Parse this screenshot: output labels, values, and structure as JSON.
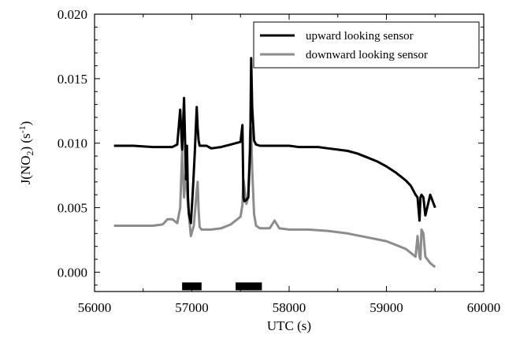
{
  "chart_data": {
    "type": "line",
    "title": "",
    "xlabel": "UTC (s)",
    "ylabel": {
      "base": "J(NO",
      "sub": "2",
      "mid": ") (s",
      "sup": "-1",
      "end": ")"
    },
    "xlim": [
      56000,
      60000
    ],
    "ylim": [
      -0.0015,
      0.02
    ],
    "xticks": [
      56000,
      57000,
      58000,
      59000,
      60000
    ],
    "xtick_labels": [
      "56000",
      "57000",
      "58000",
      "59000",
      "60000"
    ],
    "yticks": [
      0.0,
      0.005,
      0.01,
      0.015,
      0.02
    ],
    "ytick_labels": [
      "0.000",
      "0.005",
      "0.010",
      "0.015",
      "0.020"
    ],
    "legend": {
      "position": "top-right"
    },
    "grid": false,
    "series": [
      {
        "name": "upward looking sensor",
        "color": "#000000",
        "x": [
          56200,
          56400,
          56600,
          56800,
          56850,
          56880,
          56900,
          56920,
          56940,
          56950,
          56960,
          56970,
          56990,
          57010,
          57030,
          57050,
          57060,
          57070,
          57080,
          57100,
          57150,
          57200,
          57300,
          57400,
          57500,
          57520,
          57530,
          57540,
          57560,
          57580,
          57600,
          57610,
          57620,
          57640,
          57660,
          57700,
          57800,
          57900,
          58000,
          58100,
          58200,
          58300,
          58400,
          58500,
          58600,
          58700,
          58800,
          58900,
          59000,
          59100,
          59200,
          59250,
          59300,
          59320,
          59340,
          59350,
          59360,
          59380,
          59400,
          59450,
          59500
        ],
        "y": [
          0.0098,
          0.0098,
          0.0097,
          0.0097,
          0.0099,
          0.0126,
          0.0095,
          0.0135,
          0.0072,
          0.0098,
          0.0058,
          0.0045,
          0.0038,
          0.0062,
          0.0092,
          0.0128,
          0.0112,
          0.0102,
          0.0098,
          0.0098,
          0.0098,
          0.0096,
          0.0097,
          0.0099,
          0.0101,
          0.0114,
          0.0058,
          0.0055,
          0.0056,
          0.0058,
          0.0095,
          0.0166,
          0.0128,
          0.0102,
          0.0099,
          0.0098,
          0.0098,
          0.0098,
          0.0098,
          0.0097,
          0.0097,
          0.0097,
          0.0096,
          0.0095,
          0.0094,
          0.0092,
          0.0089,
          0.0086,
          0.0082,
          0.0077,
          0.0071,
          0.0067,
          0.006,
          0.0058,
          0.004,
          0.0058,
          0.006,
          0.0058,
          0.0044,
          0.006,
          0.005
        ]
      },
      {
        "name": "downward looking sensor",
        "color": "#8c8c8c",
        "x": [
          56200,
          56400,
          56600,
          56700,
          56750,
          56800,
          56850,
          56880,
          56900,
          56920,
          56940,
          56960,
          56990,
          57020,
          57050,
          57060,
          57070,
          57080,
          57100,
          57200,
          57300,
          57400,
          57500,
          57520,
          57530,
          57560,
          57580,
          57600,
          57610,
          57620,
          57640,
          57660,
          57700,
          57800,
          57850,
          57900,
          58000,
          58200,
          58400,
          58600,
          58800,
          59000,
          59200,
          59250,
          59300,
          59320,
          59340,
          59350,
          59360,
          59380,
          59400,
          59450,
          59500
        ],
        "y": [
          0.0036,
          0.0036,
          0.0036,
          0.0037,
          0.0041,
          0.0041,
          0.0038,
          0.005,
          0.0094,
          0.0058,
          0.0078,
          0.0052,
          0.0028,
          0.0036,
          0.0063,
          0.007,
          0.0048,
          0.0035,
          0.0033,
          0.0033,
          0.0034,
          0.0037,
          0.0043,
          0.0052,
          0.0072,
          0.0053,
          0.0058,
          0.011,
          0.0112,
          0.008,
          0.0045,
          0.0036,
          0.0034,
          0.0034,
          0.004,
          0.0034,
          0.0033,
          0.0033,
          0.0032,
          0.003,
          0.0027,
          0.0024,
          0.0018,
          0.0015,
          0.0012,
          0.0028,
          0.0012,
          0.001,
          0.0033,
          0.003,
          0.0012,
          0.0007,
          0.0004
        ]
      }
    ],
    "bars": [
      {
        "x_start": 56900,
        "x_end": 57100,
        "y": -0.0011
      },
      {
        "x_start": 57450,
        "x_end": 57720,
        "y": -0.0011
      }
    ]
  }
}
